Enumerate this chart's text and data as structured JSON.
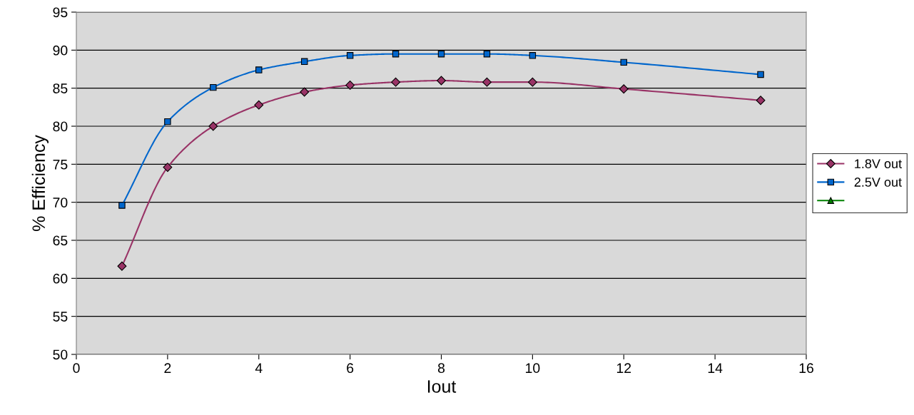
{
  "chart_data": {
    "type": "line",
    "xlabel": "Iout",
    "ylabel": "% Efficiency",
    "x": [
      1,
      2,
      3,
      4,
      5,
      6,
      7,
      8,
      9,
      10,
      12,
      15
    ],
    "series": [
      {
        "name": "1.8V out",
        "color": "#993366",
        "marker": "diamond",
        "values": [
          61.6,
          74.6,
          80.0,
          82.8,
          84.5,
          85.4,
          85.8,
          86.0,
          85.8,
          85.8,
          84.9,
          83.4
        ]
      },
      {
        "name": "2.5V out",
        "color": "#0066cc",
        "marker": "square",
        "values": [
          69.6,
          80.6,
          85.1,
          87.4,
          88.5,
          89.3,
          89.5,
          89.5,
          89.5,
          89.3,
          88.4,
          86.8
        ]
      },
      {
        "color": "#008000",
        "marker": "triangle",
        "values": [
          null,
          null,
          null,
          null,
          null,
          null,
          null,
          null,
          null,
          null,
          null,
          null
        ]
      }
    ],
    "xlim": [
      0,
      16
    ],
    "xticks": [
      0,
      2,
      4,
      6,
      8,
      10,
      12,
      14,
      16
    ],
    "ylim": [
      50,
      95
    ],
    "yticks": [
      50,
      55,
      60,
      65,
      70,
      75,
      80,
      85,
      90,
      95
    ],
    "grid": "y",
    "legend": "right"
  }
}
